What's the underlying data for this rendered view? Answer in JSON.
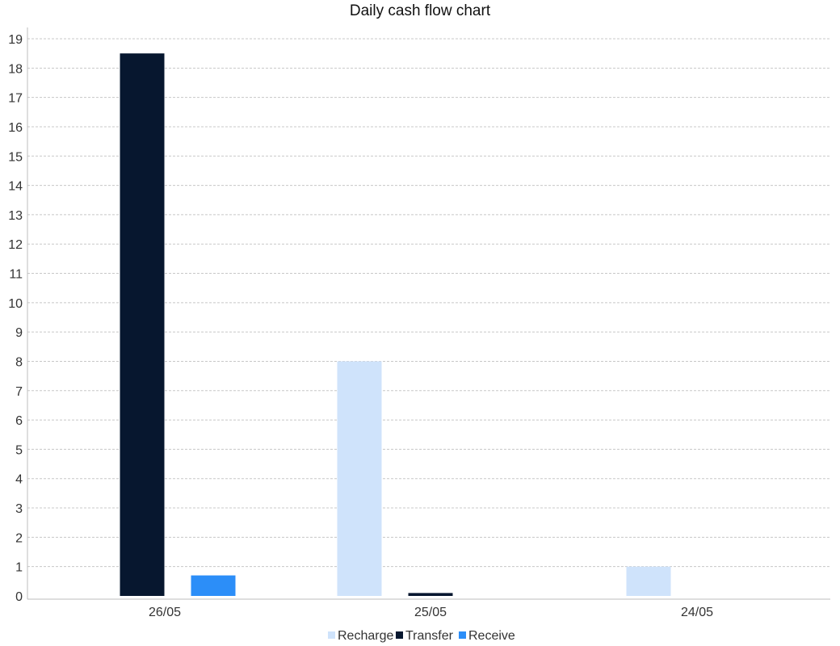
{
  "chart_data": {
    "type": "bar",
    "title": "Daily cash flow chart",
    "xlabel": "",
    "ylabel": "",
    "categories": [
      "26/05",
      "25/05",
      "24/05"
    ],
    "series": [
      {
        "name": "Recharge",
        "color": "#cfe3fb",
        "values": [
          0,
          8,
          1
        ]
      },
      {
        "name": "Transfer",
        "color": "#07172f",
        "values": [
          18.5,
          0.1,
          0
        ]
      },
      {
        "name": "Receive",
        "color": "#2c8ef8",
        "values": [
          0.7,
          0,
          0
        ]
      }
    ],
    "ylim": [
      0,
      19
    ],
    "yticks": [
      0,
      1,
      2,
      3,
      4,
      5,
      6,
      7,
      8,
      9,
      10,
      11,
      12,
      13,
      14,
      15,
      16,
      17,
      18,
      19
    ],
    "grid": true,
    "legend_position": "bottom"
  }
}
